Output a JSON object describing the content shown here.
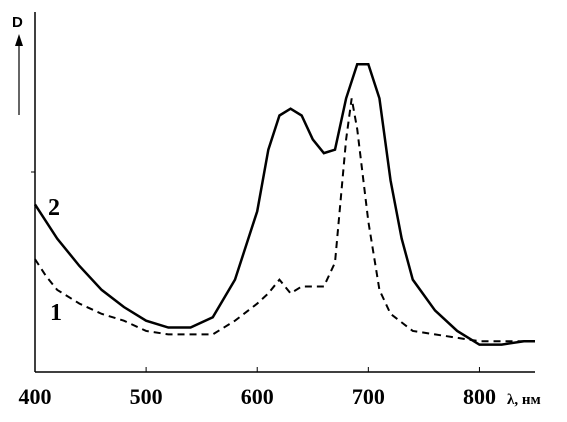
{
  "chart_data": {
    "type": "line",
    "y_label": "D",
    "x_label": "λ, нм",
    "xlim": [
      400,
      850
    ],
    "xticks": [
      400,
      500,
      600,
      700,
      800
    ],
    "ylim": [
      0,
      1
    ],
    "series": [
      {
        "name": "1",
        "color": "#000000",
        "style": "dashed",
        "x": [
          400,
          410,
          420,
          440,
          460,
          480,
          500,
          520,
          540,
          560,
          580,
          600,
          610,
          620,
          630,
          640,
          660,
          670,
          680,
          685,
          690,
          700,
          710,
          720,
          740,
          760,
          800,
          850
        ],
        "values": [
          0.33,
          0.28,
          0.24,
          0.2,
          0.17,
          0.15,
          0.12,
          0.11,
          0.11,
          0.11,
          0.15,
          0.2,
          0.23,
          0.27,
          0.23,
          0.25,
          0.25,
          0.32,
          0.68,
          0.8,
          0.71,
          0.44,
          0.24,
          0.17,
          0.12,
          0.11,
          0.09,
          0.09
        ]
      },
      {
        "name": "2",
        "color": "#000000",
        "style": "solid",
        "x": [
          400,
          420,
          440,
          460,
          480,
          500,
          520,
          540,
          560,
          580,
          600,
          610,
          620,
          630,
          640,
          650,
          660,
          670,
          680,
          690,
          700,
          710,
          720,
          730,
          740,
          760,
          780,
          800,
          820,
          840,
          850
        ],
        "values": [
          0.49,
          0.39,
          0.31,
          0.24,
          0.19,
          0.15,
          0.13,
          0.13,
          0.16,
          0.27,
          0.47,
          0.65,
          0.75,
          0.77,
          0.75,
          0.68,
          0.64,
          0.65,
          0.8,
          0.9,
          0.9,
          0.8,
          0.56,
          0.39,
          0.27,
          0.18,
          0.12,
          0.08,
          0.08,
          0.09,
          0.09
        ]
      }
    ]
  }
}
